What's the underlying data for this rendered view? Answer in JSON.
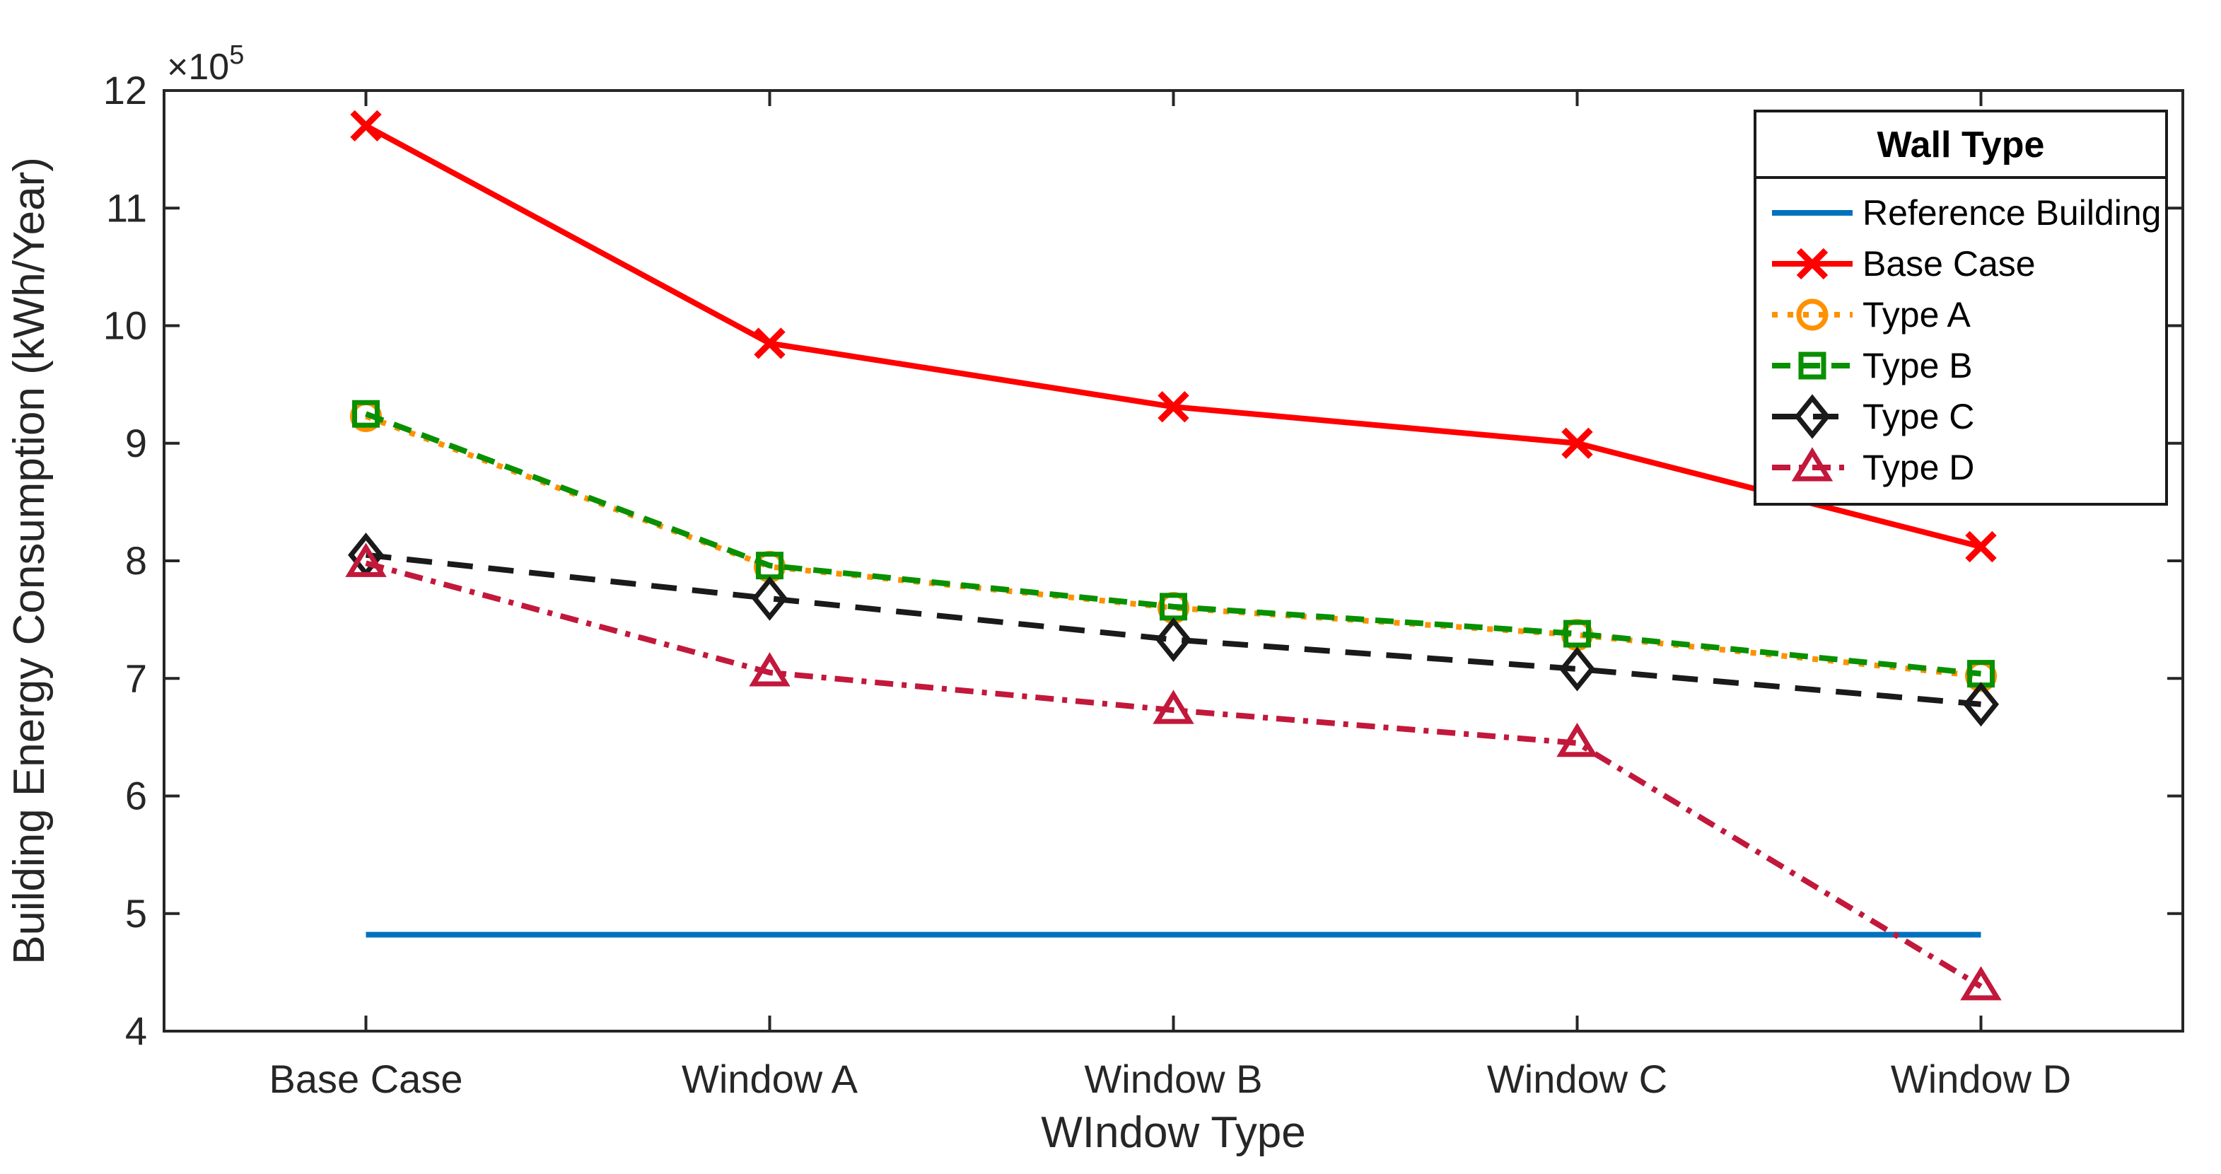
{
  "figure": {
    "background": "#ffffff",
    "axis_color": "#262626",
    "tick_label_color": "#262626"
  },
  "chart_data": {
    "type": "line",
    "title": "",
    "xlabel": "WIndow Type",
    "ylabel": "Building Energy Consumption (kWh/Year)",
    "categories": [
      "Base Case",
      "Window A",
      "Window B",
      "Window C",
      "Window D"
    ],
    "y_axis": {
      "min": 4,
      "max": 12,
      "ticks": [
        4,
        5,
        6,
        7,
        8,
        9,
        10,
        11,
        12
      ],
      "exponent_label": "×10",
      "exponent_power": "5",
      "unit_multiplier": 100000
    },
    "grid": false,
    "legend": {
      "title": "Wall Type",
      "position": "upper right"
    },
    "series": [
      {
        "name": "Reference Building",
        "color": "#0072BD",
        "line_style": "solid",
        "marker": "none",
        "values": [
          4.82,
          4.82,
          4.82,
          4.82,
          4.82
        ]
      },
      {
        "name": "Base Case",
        "color": "#FF0000",
        "line_style": "solid",
        "marker": "x",
        "values": [
          11.7,
          9.85,
          9.31,
          9.0,
          8.12
        ]
      },
      {
        "name": "Type A",
        "color": "#FF9100",
        "line_style": "dotted",
        "marker": "circle",
        "values": [
          9.23,
          7.95,
          7.6,
          7.37,
          7.02
        ]
      },
      {
        "name": "Type B",
        "color": "#089000",
        "line_style": "dashed",
        "marker": "square",
        "values": [
          9.25,
          7.96,
          7.61,
          7.38,
          7.04
        ]
      },
      {
        "name": "Type C",
        "color": "#1A1A1A",
        "line_style": "dashed_long",
        "marker": "diamond",
        "values": [
          8.05,
          7.68,
          7.33,
          7.08,
          6.78
        ]
      },
      {
        "name": "Type D",
        "color": "#C2183B",
        "line_style": "dashdot",
        "marker": "triangle",
        "values": [
          7.98,
          7.05,
          6.73,
          6.45,
          4.38
        ]
      }
    ]
  }
}
